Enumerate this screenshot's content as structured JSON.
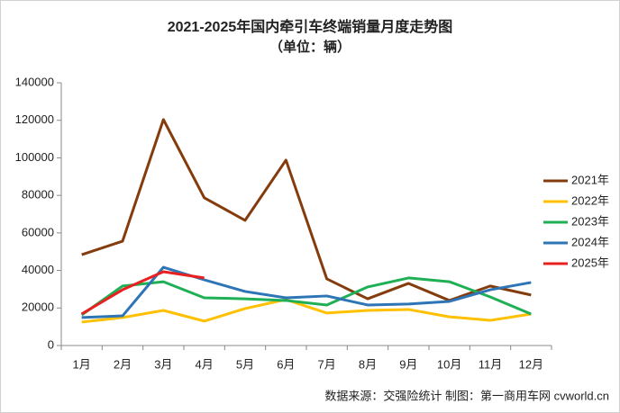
{
  "chart_data": {
    "type": "line",
    "title": "2021-2025年国内牵引车终端销量月度走势图",
    "subtitle": "（单位：辆）",
    "source": "数据来源：交强险统计  制图：第一商用车网 cvworld.cn",
    "categories": [
      "1月",
      "2月",
      "3月",
      "4月",
      "5月",
      "6月",
      "7月",
      "8月",
      "9月",
      "10月",
      "11月",
      "12月"
    ],
    "series": [
      {
        "name": "2021年",
        "color": "#843c0c",
        "values": [
          48400,
          55600,
          120400,
          78700,
          66700,
          98800,
          35500,
          24900,
          33100,
          24000,
          31700,
          26900
        ]
      },
      {
        "name": "2022年",
        "color": "#ffc000",
        "values": [
          12500,
          14900,
          18700,
          13000,
          19700,
          24500,
          17300,
          18700,
          19200,
          15300,
          13400,
          16800
        ]
      },
      {
        "name": "2023年",
        "color": "#1faf55",
        "values": [
          16300,
          31700,
          34000,
          25400,
          24900,
          24000,
          21600,
          31200,
          36000,
          34000,
          25900,
          16800
        ]
      },
      {
        "name": "2024年",
        "color": "#2e75b6",
        "values": [
          14900,
          15800,
          41700,
          35000,
          28800,
          25400,
          26400,
          21600,
          22100,
          23500,
          29700,
          33600
        ]
      },
      {
        "name": "2025年",
        "color": "#e82020",
        "values": [
          16800,
          29700,
          39300,
          36000,
          null,
          null,
          null,
          null,
          null,
          null,
          null,
          null
        ]
      }
    ],
    "ylim": [
      0,
      140000
    ],
    "yticks": [
      0,
      20000,
      40000,
      60000,
      80000,
      100000,
      120000,
      140000
    ],
    "grid": false,
    "legend": "right"
  }
}
